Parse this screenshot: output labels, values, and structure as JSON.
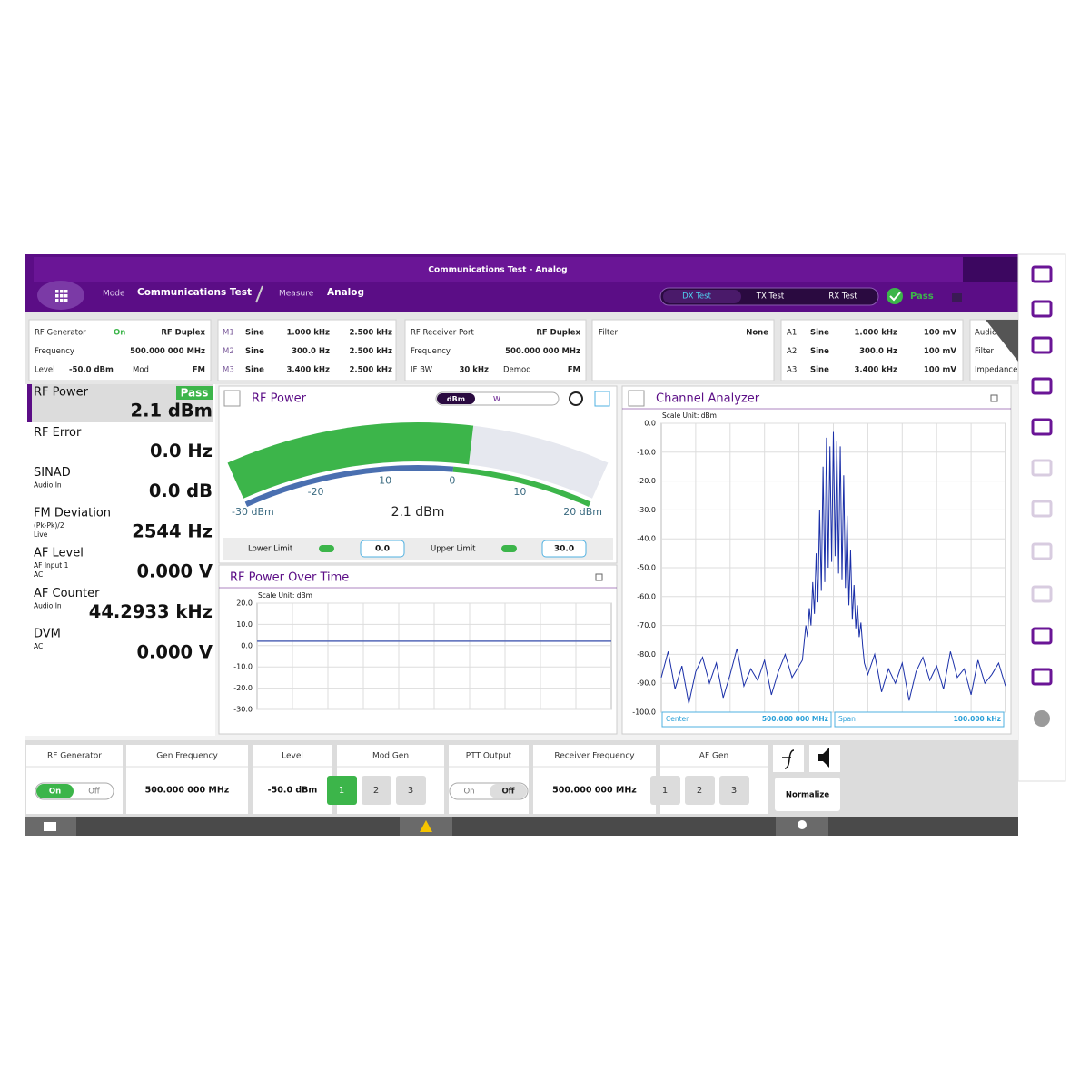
{
  "header": {
    "title": "Communications Test - Analog",
    "mode_label": "Mode",
    "mode": "Communications Test",
    "measure_label": "Measure",
    "measure": "Analog",
    "tabs": [
      "DX Test",
      "TX Test",
      "RX Test"
    ],
    "status": "Pass"
  },
  "info_panels": [
    {
      "rows": [
        [
          "RF Generator",
          "On",
          "RF Duplex"
        ],
        [
          "Frequency",
          "500.000 000 MHz"
        ],
        [
          "Level",
          "-50.0 dBm",
          "Mod",
          "FM"
        ]
      ]
    },
    {
      "rows": [
        [
          "M1",
          "Sine",
          "1.000 kHz",
          "2.500 kHz"
        ],
        [
          "M2",
          "Sine",
          "300.0 Hz",
          "2.500 kHz"
        ],
        [
          "M3",
          "Sine",
          "3.400 kHz",
          "2.500 kHz"
        ]
      ]
    },
    {
      "rows": [
        [
          "RF Receiver Port",
          "RF Duplex"
        ],
        [
          "Frequency",
          "500.000 000 MHz"
        ],
        [
          "IF BW",
          "30 kHz",
          "Demod",
          "FM"
        ]
      ]
    },
    {
      "rows": [
        [
          "Filter",
          "None"
        ]
      ]
    },
    {
      "rows": [
        [
          "A1",
          "Sine",
          "1.000 kHz",
          "100 mV"
        ],
        [
          "A2",
          "Sine",
          "300.0 Hz",
          "100 mV"
        ],
        [
          "A3",
          "Sine",
          "3.400 kHz",
          "100 mV"
        ]
      ]
    },
    {
      "rows": [
        [
          "Audio In So"
        ],
        [
          "Filter"
        ],
        [
          "Impedance"
        ]
      ]
    }
  ],
  "results": [
    {
      "name": "RF Power",
      "status": "Pass",
      "value": "2.1 dBm"
    },
    {
      "name": "RF Error",
      "value": "0.0 Hz"
    },
    {
      "name": "SINAD",
      "sub": [
        "Audio In"
      ],
      "value": "0.0 dB"
    },
    {
      "name": "FM Deviation",
      "sub": [
        "(Pk-Pk)/2",
        "Live"
      ],
      "value": "2544 Hz"
    },
    {
      "name": "AF Level",
      "sub": [
        "AF Input 1",
        "AC"
      ],
      "value": "0.000 V"
    },
    {
      "name": "AF Counter",
      "sub": [
        "Audio In"
      ],
      "value": "44.2933 kHz"
    },
    {
      "name": "DVM",
      "sub": [
        "AC"
      ],
      "value": "0.000 V"
    }
  ],
  "rf_power": {
    "title": "RF Power",
    "units": [
      "dBm",
      "W"
    ],
    "gauge": {
      "value": 2.1,
      "value_label": "2.1 dBm",
      "lim": [
        -30,
        20
      ],
      "ticks": [
        {
          "value": -30,
          "label": "-30 dBm"
        },
        -20,
        -10,
        0,
        10,
        {
          "value": 20,
          "label": "20 dBm"
        }
      ]
    },
    "lower_limit_label": "Lower Limit",
    "lower_limit": {
      "value": 0,
      "label": "0.0"
    },
    "upper_limit_label": "Upper Limit",
    "upper_limit": {
      "value": 30,
      "label": "30.0"
    }
  },
  "rf_power_over_time": {
    "type": "line",
    "title": "RF Power Over Time",
    "scale_label": "Scale Unit: dBm",
    "values": [
      2.1,
      2.1,
      2.1,
      2.1,
      2.1,
      2.1,
      2.1,
      2.1,
      2.1,
      2.1,
      2.1,
      2.1
    ],
    "color": "#5468b8",
    "ylim": [
      -30,
      20
    ],
    "yticks": [
      {
        "value": 20,
        "label": "20.0"
      },
      {
        "value": 10,
        "label": "10.0"
      },
      {
        "value": 0,
        "label": "0.0"
      },
      {
        "value": -10,
        "label": "-10.0"
      },
      {
        "value": -20,
        "label": "-20.0"
      },
      {
        "value": -30,
        "label": "-30.0"
      }
    ],
    "grid": true
  },
  "channel_analyzer": {
    "type": "line",
    "title": "Channel Analyzer",
    "scale_label": "Scale Unit: dBm",
    "center_label": "Center",
    "center": "500.000 000 MHz",
    "span_label": "Span",
    "span": "100.000 kHz",
    "xlim": [
      -50,
      50
    ],
    "ylim": [
      -100,
      0
    ],
    "color": "#1a2fa8",
    "grid": true,
    "yticks": [
      {
        "value": 0,
        "label": "0.0"
      },
      {
        "value": -10,
        "label": "-10.0"
      },
      {
        "value": -20,
        "label": "-20.0"
      },
      {
        "value": -30,
        "label": "-30.0"
      },
      {
        "value": -40,
        "label": "-40.0"
      },
      {
        "value": -50,
        "label": "-50.0"
      },
      {
        "value": -60,
        "label": "-60.0"
      },
      {
        "value": -70,
        "label": "-70.0"
      },
      {
        "value": -80,
        "label": "-80.0"
      },
      {
        "value": -90,
        "label": "-90.0"
      },
      {
        "value": -100,
        "label": "-100.0"
      }
    ],
    "x": [
      -50,
      -48,
      -46,
      -44,
      -42,
      -40,
      -38,
      -36,
      -34,
      -32,
      -30,
      -28,
      -26,
      -24,
      -22,
      -20,
      -18,
      -16,
      -14,
      -12,
      -10,
      -9,
      -8.5,
      -8,
      -7.5,
      -7,
      -6.5,
      -6,
      -5.5,
      -5,
      -4.5,
      -4,
      -3.5,
      -3,
      -2.5,
      -2,
      -1.5,
      -1,
      -0.5,
      0,
      0.5,
      1,
      1.5,
      2,
      2.5,
      3,
      3.5,
      4,
      4.5,
      5,
      5.5,
      6,
      6.5,
      7,
      7.5,
      8,
      8.5,
      9,
      10,
      12,
      14,
      16,
      18,
      20,
      22,
      24,
      26,
      28,
      30,
      32,
      34,
      36,
      38,
      40,
      42,
      44,
      46,
      48,
      50
    ],
    "values": [
      -88,
      -79,
      -92,
      -84,
      -97,
      -86,
      -81,
      -90,
      -83,
      -95,
      -87,
      -78,
      -91,
      -85,
      -89,
      -82,
      -94,
      -86,
      -80,
      -88,
      -84,
      -82,
      -76,
      -70,
      -74,
      -64,
      -70,
      -55,
      -66,
      -45,
      -62,
      -30,
      -58,
      -15,
      -55,
      -5,
      -50,
      -8,
      -48,
      -3,
      -46,
      -6,
      -52,
      -8,
      -54,
      -18,
      -57,
      -32,
      -63,
      -44,
      -68,
      -56,
      -71,
      -63,
      -74,
      -69,
      -77,
      -83,
      -87,
      -80,
      -93,
      -85,
      -90,
      -83,
      -96,
      -86,
      -81,
      -89,
      -84,
      -92,
      -79,
      -88,
      -85,
      -94,
      -82,
      -90,
      -87,
      -83,
      -91
    ]
  },
  "controls": [
    {
      "label": "RF Generator",
      "options": [
        "On",
        "Off"
      ]
    },
    {
      "label": "Gen Frequency",
      "value": "500.000 000 MHz"
    },
    {
      "label": "Level",
      "value": "-50.0 dBm"
    },
    {
      "label": "Mod Gen",
      "options": [
        "1",
        "2",
        "3"
      ]
    },
    {
      "label": "PTT Output",
      "options": [
        "On",
        "Off"
      ]
    },
    {
      "label": "Receiver Frequency",
      "value": "500.000 000 MHz"
    },
    {
      "label": "AF Gen",
      "options": [
        "1",
        "2",
        "3"
      ]
    }
  ],
  "normalize": "Normalize"
}
